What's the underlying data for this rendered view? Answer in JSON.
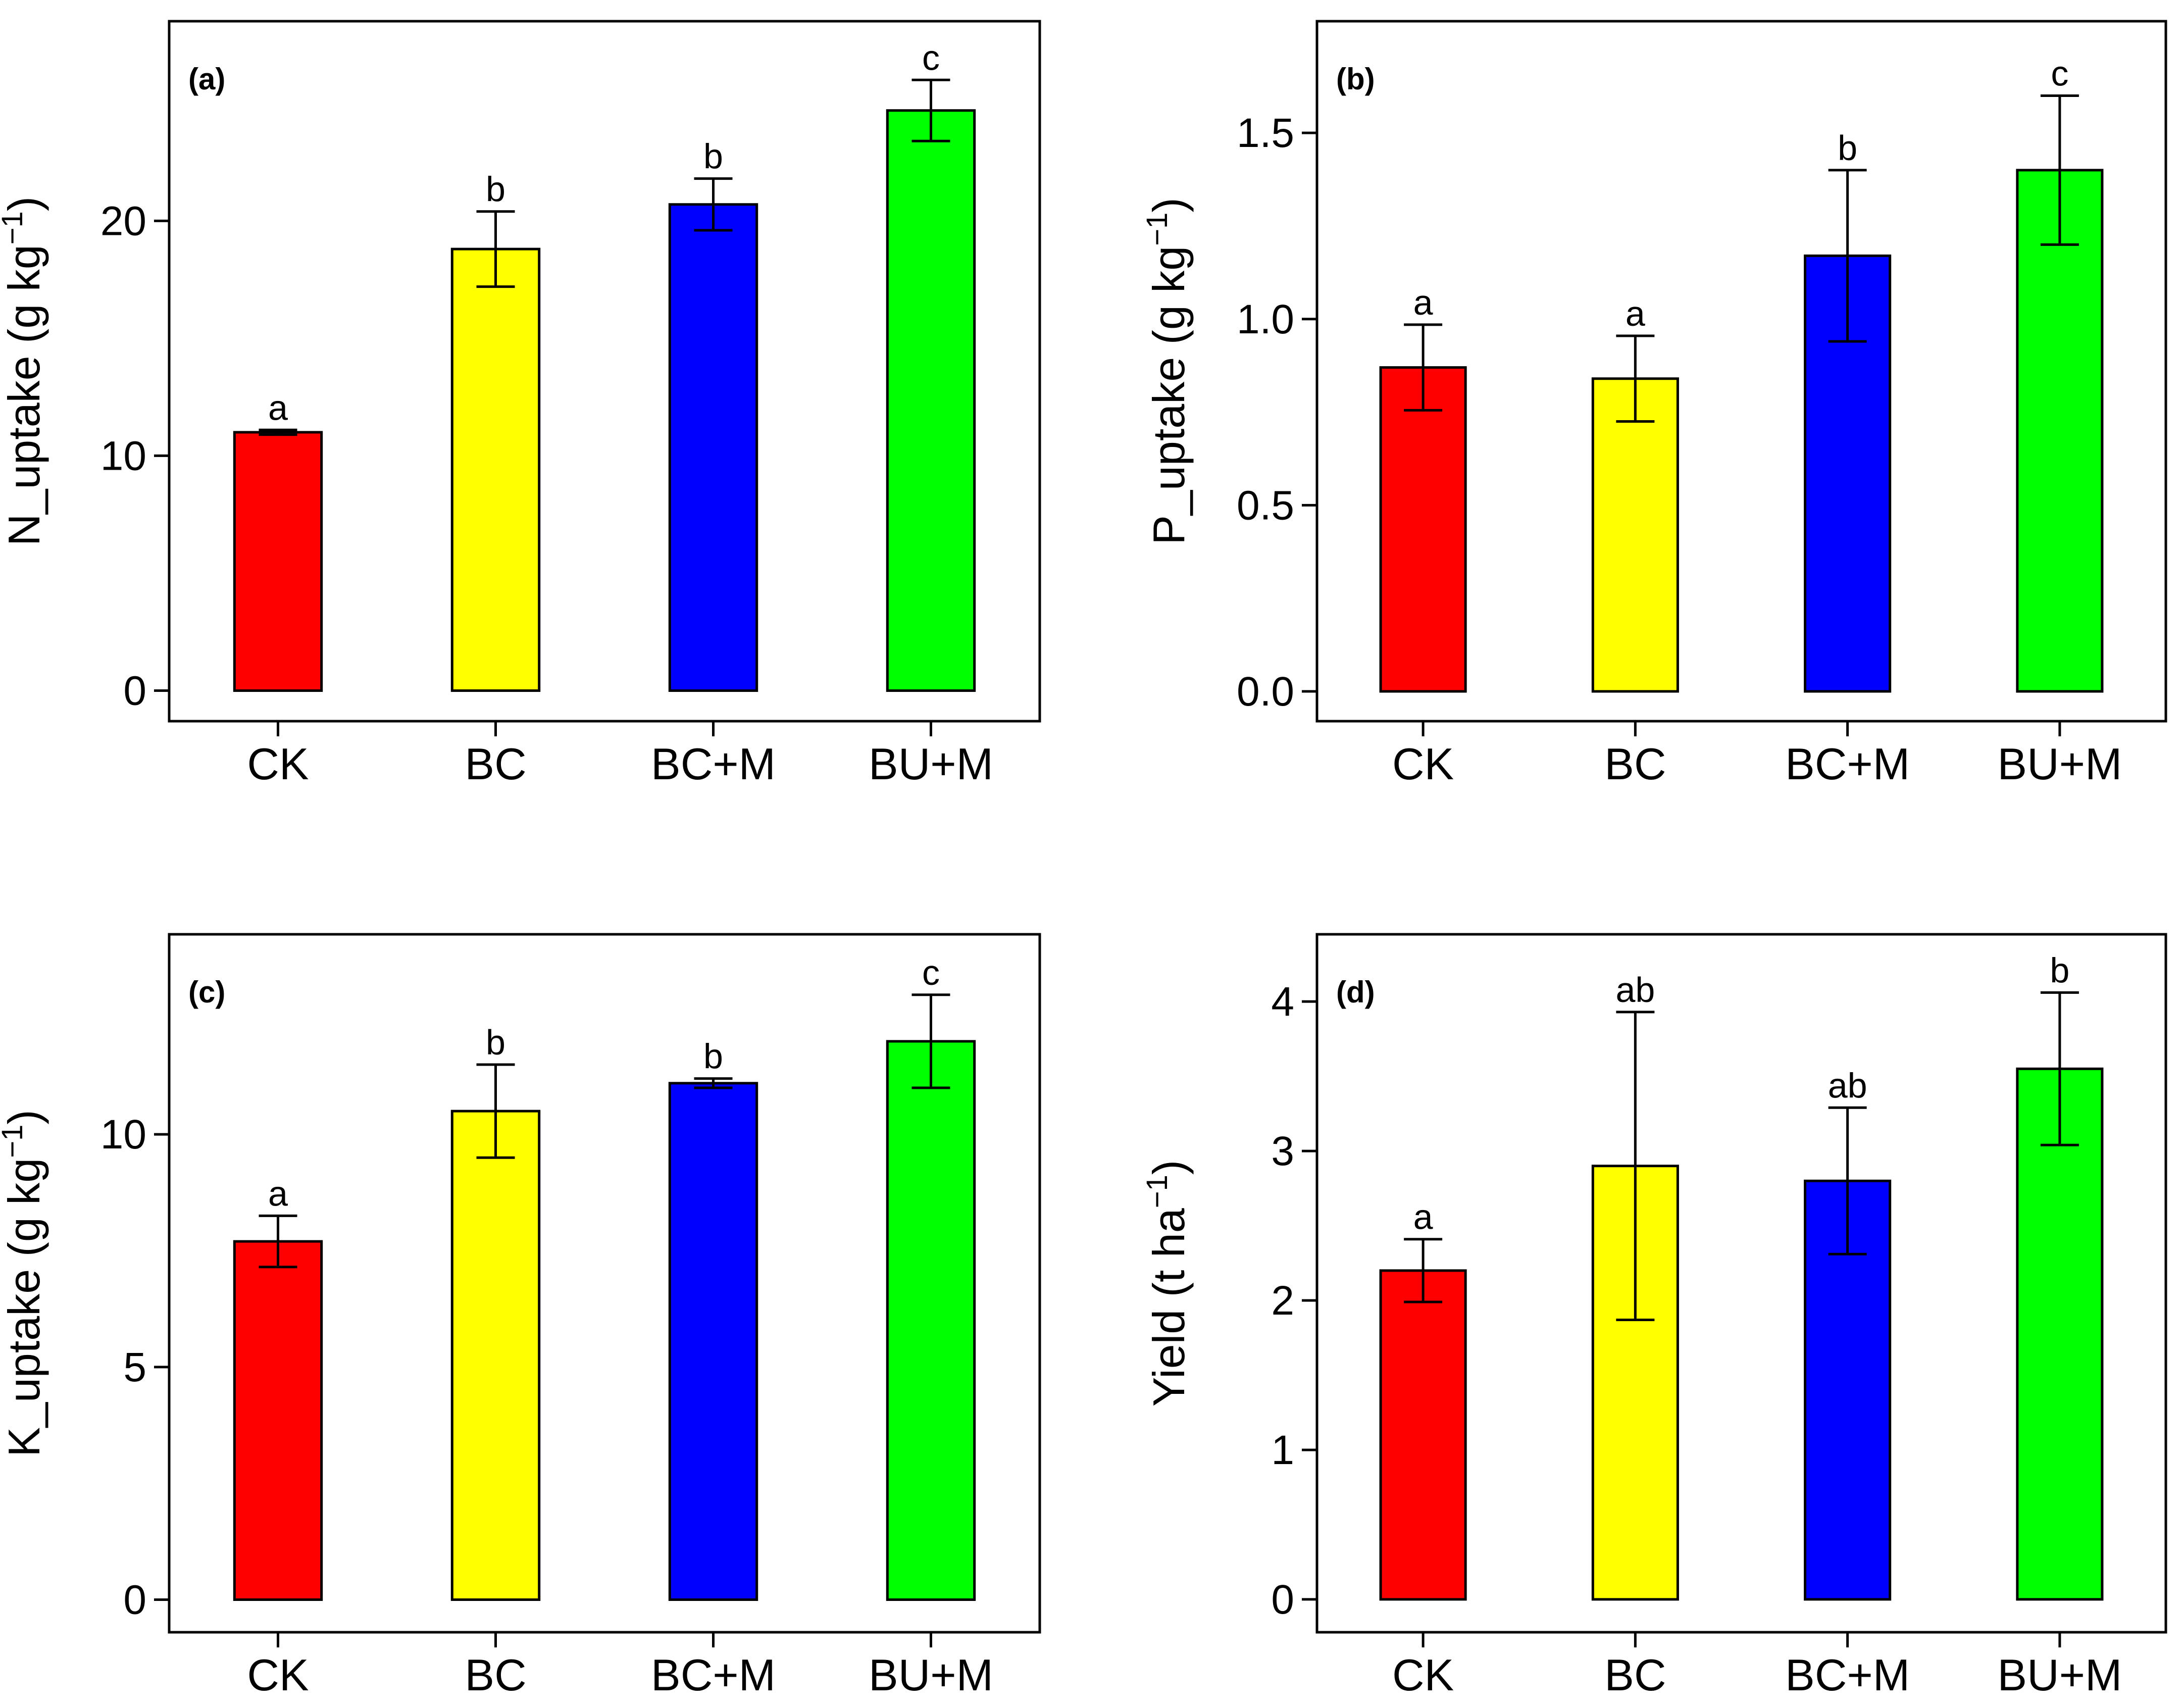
{
  "chart_data": [
    {
      "type": "bar",
      "panel_label": "(a)",
      "ylabel_main": "N_uptake (g kg",
      "ylabel_sup": "−1",
      "ylabel_end": ")",
      "categories": [
        "CK",
        "BC",
        "BC+M",
        "BU+M"
      ],
      "values": [
        11.0,
        18.8,
        20.7,
        24.7
      ],
      "errors": [
        0.1,
        1.6,
        1.1,
        1.3
      ],
      "letters": [
        "a",
        "b",
        "b",
        "c"
      ],
      "colors": [
        "#ff0000",
        "#ffff00",
        "#0000ff",
        "#00ff00"
      ],
      "yticks": [
        0,
        10,
        20
      ],
      "ytick_labels": [
        "0",
        "10",
        "20"
      ],
      "ylim": [
        -1.3,
        28.5
      ]
    },
    {
      "type": "bar",
      "panel_label": "(b)",
      "ylabel_main": "P_uptake (g kg",
      "ylabel_sup": "−1",
      "ylabel_end": ")",
      "categories": [
        "CK",
        "BC",
        "BC+M",
        "BU+M"
      ],
      "values": [
        0.87,
        0.84,
        1.17,
        1.4
      ],
      "errors": [
        0.115,
        0.115,
        0.23,
        0.2
      ],
      "letters": [
        "a",
        "a",
        "b",
        "c"
      ],
      "colors": [
        "#ff0000",
        "#ffff00",
        "#0000ff",
        "#00ff00"
      ],
      "yticks": [
        0,
        0.5,
        1.0,
        1.5
      ],
      "ytick_labels": [
        "0.0",
        "0.5",
        "1.0",
        "1.5"
      ],
      "ylim": [
        -0.08,
        1.8
      ]
    },
    {
      "type": "bar",
      "panel_label": "(c)",
      "ylabel_main": "K_uptake (g kg",
      "ylabel_sup": "−1",
      "ylabel_end": ")",
      "categories": [
        "CK",
        "BC",
        "BC+M",
        "BU+M"
      ],
      "values": [
        7.7,
        10.5,
        11.1,
        12.0
      ],
      "errors": [
        0.55,
        1.0,
        0.1,
        1.0
      ],
      "letters": [
        "a",
        "b",
        "b",
        "c"
      ],
      "colors": [
        "#ff0000",
        "#ffff00",
        "#0000ff",
        "#00ff00"
      ],
      "yticks": [
        0,
        5,
        10
      ],
      "ytick_labels": [
        "0",
        "5",
        "10"
      ],
      "ylim": [
        -0.7,
        14.3
      ]
    },
    {
      "type": "bar",
      "panel_label": "(d)",
      "ylabel_main": "Yield (t ha",
      "ylabel_sup": "−1",
      "ylabel_end": ")",
      "categories": [
        "CK",
        "BC",
        "BC+M",
        "BU+M"
      ],
      "values": [
        2.2,
        2.9,
        2.8,
        3.55
      ],
      "errors": [
        0.21,
        1.03,
        0.49,
        0.51
      ],
      "letters": [
        "a",
        "ab",
        "ab",
        "b"
      ],
      "colors": [
        "#ff0000",
        "#ffff00",
        "#0000ff",
        "#00ff00"
      ],
      "yticks": [
        0,
        1,
        2,
        3,
        4
      ],
      "ytick_labels": [
        "0",
        "1",
        "2",
        "3",
        "4"
      ],
      "ylim": [
        -0.22,
        4.45
      ]
    }
  ]
}
